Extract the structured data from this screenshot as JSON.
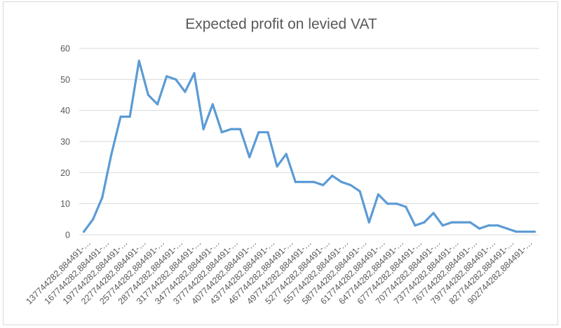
{
  "chart_data": {
    "type": "line",
    "title": "Expected profit on levied VAT",
    "xlabel": "",
    "ylabel": "",
    "ylim": [
      0,
      60
    ],
    "yticks": [
      0,
      10,
      20,
      30,
      40,
      50,
      60
    ],
    "grid": true,
    "legend": "none",
    "x_tick_labels": [
      "137744282,884491-…",
      "167744282,884491-…",
      "197744282,884491-…",
      "227744282,884491-…",
      "257744282,884491-…",
      "287744282,884491-…",
      "317744282,884491-…",
      "347744282,884491-…",
      "377744282,884491-…",
      "407744282,884491-…",
      "437744282,884491-…",
      "467744282,884491-…",
      "497744282,884491-…",
      "527744282,884491-…",
      "557744282,884491-…",
      "587744282,884491-…",
      "617744282,884491-…",
      "647744282,884491-…",
      "677744282,884491-…",
      "707744282,884491-…",
      "737744282,884491-…",
      "767744282,884491-…",
      "797744282,884491-…",
      "827744282,884491-…",
      "902744282,884491-…"
    ],
    "series": [
      {
        "color": "#5b9bd5",
        "values": [
          1,
          5,
          12,
          26,
          38,
          38,
          56,
          45,
          42,
          51,
          50,
          46,
          52,
          34,
          42,
          33,
          34,
          34,
          25,
          33,
          33,
          22,
          26,
          17,
          17,
          17,
          16,
          19,
          17,
          16,
          14,
          4,
          13,
          10,
          10,
          9,
          3,
          4,
          7,
          3,
          4,
          4,
          4,
          2,
          3,
          3,
          2,
          1,
          1,
          1
        ]
      }
    ]
  }
}
